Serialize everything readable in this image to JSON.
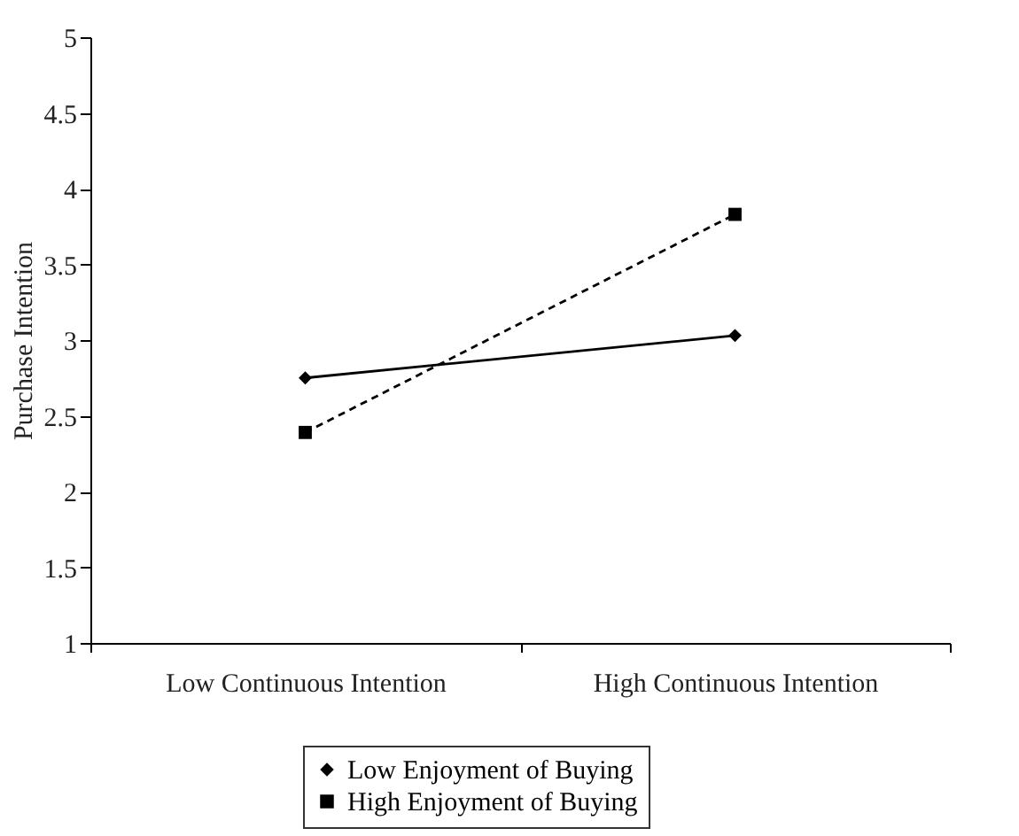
{
  "chart_data": {
    "type": "line",
    "ylabel": "Purchase Intention",
    "categories": [
      "Low Continuous Intention",
      "High Continuous Intention"
    ],
    "series": [
      {
        "name": "Low Enjoyment of Buying",
        "color": "#000000",
        "values": [
          2.75,
          3.03
        ],
        "marker": "diamond",
        "line_style": "solid"
      },
      {
        "name": "High Enjoyment of Buying",
        "color": "#000000",
        "values": [
          2.39,
          3.83
        ],
        "marker": "square",
        "line_style": "dashed"
      }
    ],
    "ylim": [
      1,
      5
    ],
    "yticks": [
      1,
      1.5,
      2,
      2.5,
      3,
      3.5,
      4,
      4.5,
      5
    ],
    "grid": false,
    "legend": "bottom"
  }
}
